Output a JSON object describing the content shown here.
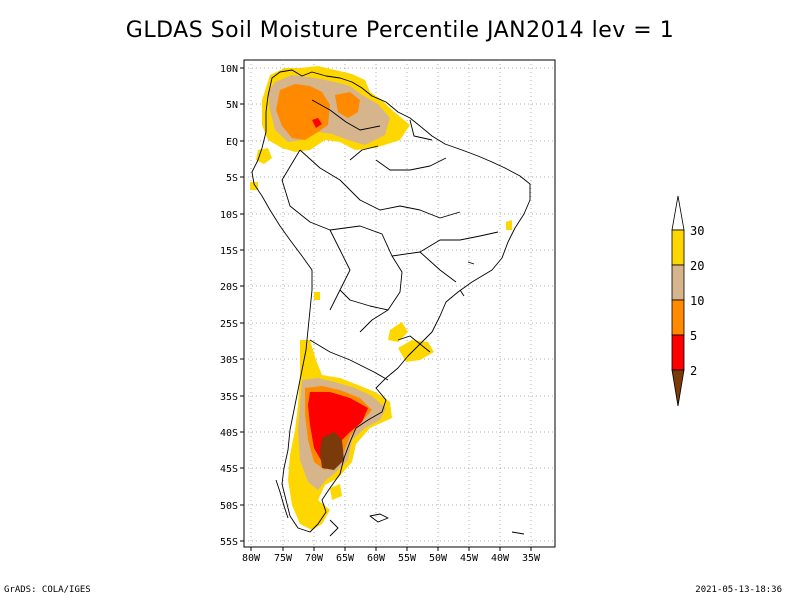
{
  "title": "GLDAS Soil Moisture Percentile JAN2014 lev = 1",
  "footer": {
    "left": "GrADS: COLA/IGES",
    "right": "2021-05-13-18:36"
  },
  "map": {
    "lat_labels": [
      "10N",
      "5N",
      "EQ",
      "5S",
      "10S",
      "15S",
      "20S",
      "25S",
      "30S",
      "35S",
      "40S",
      "45S",
      "50S",
      "55S"
    ],
    "lon_labels": [
      "80W",
      "75W",
      "70W",
      "65W",
      "60W",
      "55W",
      "50W",
      "45W",
      "40W",
      "35W"
    ]
  },
  "legend": {
    "labels": [
      "2",
      "5",
      "10",
      "20",
      "30"
    ],
    "colors": {
      "below2": "#7a3a0a",
      "2-5": "#ff0000",
      "5-10": "#ff8a00",
      "10-20": "#d6b48c",
      "20-30": "#ffd700",
      "above30": "#ffffff"
    }
  }
}
